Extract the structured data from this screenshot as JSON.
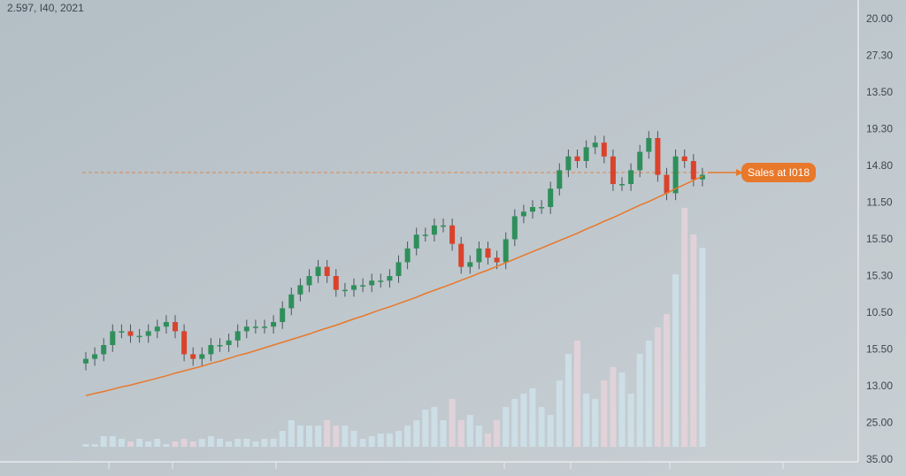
{
  "chart_data": {
    "type": "candlestick",
    "title": "2.597, I40, 2021",
    "annotation": "Sales at I018",
    "reference_line": 62.5,
    "ylim": [
      0,
      100
    ],
    "y2lim": [
      0,
      100
    ],
    "y_axis_labels": [
      "20.00",
      "27.30",
      "13.50",
      "19.30",
      "14.80",
      "11.50",
      "15.50",
      "15.30",
      "10.50",
      "15.50",
      "13.00",
      "25.00",
      "35.00"
    ],
    "up_color": "#2f8f5b",
    "down_color": "#d9432c",
    "trend_color": "#e8782a",
    "open": [
      21,
      22,
      23,
      25,
      28,
      28,
      27,
      27,
      28,
      29,
      30,
      28,
      23,
      22,
      23,
      25,
      25,
      26,
      28,
      29,
      29,
      29,
      30,
      33,
      36,
      38,
      40,
      42,
      40,
      37,
      37,
      38,
      38,
      39,
      39,
      40,
      43,
      46,
      49,
      49,
      51,
      51,
      47,
      42,
      43,
      46,
      44,
      43,
      48,
      53,
      54,
      55,
      55,
      59,
      63,
      66,
      65,
      68,
      69,
      66,
      60,
      60,
      63,
      67,
      70,
      62,
      58,
      66,
      65,
      61
    ],
    "high": [
      23.5,
      24.5,
      26.5,
      29.5,
      29.5,
      29.5,
      28.5,
      29.5,
      30.5,
      31.5,
      31.5,
      29.5,
      24.5,
      24.5,
      26.5,
      26.5,
      27.5,
      29.5,
      30.5,
      30.5,
      30.5,
      31.5,
      34.5,
      37.5,
      39.5,
      41.5,
      43.5,
      43.5,
      41.5,
      38.5,
      39.5,
      39.5,
      40.5,
      40.5,
      41.5,
      44.5,
      47.5,
      50.5,
      50.5,
      52.5,
      52.5,
      52.5,
      48.5,
      44.5,
      47.5,
      47.5,
      45.5,
      49.5,
      54.5,
      55.5,
      56.5,
      56.5,
      60.5,
      64.5,
      67.5,
      67.5,
      69.5,
      70.5,
      70.5,
      67.5,
      61.5,
      64.5,
      68.5,
      71.5,
      71.5,
      63.5,
      67.5,
      67.5,
      66.5,
      63.5
    ],
    "low": [
      19.5,
      20.5,
      21.5,
      23.5,
      26.5,
      25.5,
      25.5,
      25.5,
      26.5,
      27.5,
      26.5,
      21.5,
      20.5,
      20.5,
      21.5,
      23.5,
      23.5,
      24.5,
      26.5,
      27.5,
      27.5,
      27.5,
      28.5,
      31.5,
      34.5,
      36.5,
      38.5,
      38.5,
      35.5,
      35.5,
      35.5,
      36.5,
      36.5,
      37.5,
      37.5,
      38.5,
      41.5,
      44.5,
      47.5,
      47.5,
      49.5,
      45.5,
      40.5,
      40.5,
      41.5,
      42.5,
      41.5,
      41.5,
      46.5,
      51.5,
      52.5,
      53.5,
      53.5,
      57.5,
      61.5,
      63.5,
      63.5,
      66.5,
      64.5,
      58.5,
      58.5,
      58.5,
      61.5,
      65.5,
      60.5,
      56.5,
      56.5,
      63.5,
      59.5,
      59.5
    ],
    "close": [
      22,
      23,
      25,
      28,
      28,
      27,
      27,
      28,
      29,
      30,
      28,
      23,
      22,
      23,
      25,
      25,
      26,
      28,
      29,
      29,
      29,
      30,
      33,
      36,
      38,
      40,
      42,
      40,
      37,
      37,
      38,
      38,
      39,
      39,
      40,
      43,
      46,
      49,
      49,
      51,
      51,
      47,
      42,
      43,
      46,
      44,
      43,
      48,
      53,
      54,
      55,
      55,
      59,
      63,
      66,
      65,
      68,
      69,
      66,
      60,
      60,
      63,
      67,
      70,
      62,
      58,
      66,
      65,
      61,
      62
    ],
    "volume": [
      1,
      1,
      4,
      4,
      3,
      2,
      3,
      2,
      3,
      1,
      2,
      3,
      2,
      3,
      4,
      3,
      2,
      3,
      3,
      2,
      3,
      3,
      6,
      10,
      8,
      8,
      8,
      10,
      8,
      8,
      6,
      3,
      4,
      5,
      5,
      6,
      8,
      10,
      14,
      15,
      10,
      18,
      10,
      12,
      8,
      5,
      10,
      15,
      18,
      20,
      22,
      15,
      12,
      25,
      35,
      40,
      20,
      18,
      25,
      30,
      28,
      20,
      35,
      40,
      45,
      50,
      65,
      90,
      80,
      75
    ],
    "trend": [
      14.0,
      14.5,
      14.9,
      15.4,
      15.9,
      16.3,
      16.8,
      17.3,
      17.8,
      18.3,
      18.9,
      19.4,
      19.9,
      20.4,
      21.0,
      21.5,
      22.1,
      22.7,
      23.2,
      23.8,
      24.4,
      25.0,
      25.6,
      26.2,
      26.8,
      27.4,
      28.1,
      28.7,
      29.3,
      30.0,
      30.7,
      31.3,
      32.0,
      32.7,
      33.3,
      34.0,
      34.7,
      35.4,
      36.2,
      36.9,
      37.6,
      38.3,
      39.1,
      39.8,
      40.6,
      41.3,
      42.1,
      42.9,
      43.7,
      44.5,
      45.3,
      46.1,
      46.9,
      47.7,
      48.5,
      49.3,
      50.2,
      51.0,
      51.9,
      52.7,
      53.6,
      54.5,
      55.4,
      56.2,
      57.1,
      58.0,
      59.0,
      59.9,
      60.8,
      61.7
    ]
  }
}
